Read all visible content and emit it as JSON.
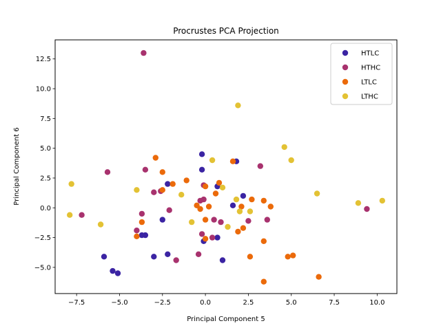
{
  "chart_data": {
    "type": "scatter",
    "title": "Procrustes PCA Projection",
    "xlabel": "Principal Component 5",
    "ylabel": "Principal Component 6",
    "xlim": [
      -8.75,
      11.15
    ],
    "ylim": [
      -7.2,
      14.1
    ],
    "xticks": [
      -7.5,
      -5.0,
      -2.5,
      0.0,
      2.5,
      5.0,
      7.5,
      10.0
    ],
    "yticks": [
      -5.0,
      -2.5,
      0.0,
      2.5,
      5.0,
      7.5,
      10.0,
      12.5
    ],
    "xtick_labels": [
      "−7.5",
      "−5.0",
      "−2.5",
      "0.0",
      "2.5",
      "5.0",
      "7.5",
      "10.0"
    ],
    "ytick_labels": [
      "−5.0",
      "−2.5",
      "0.0",
      "2.5",
      "5.0",
      "7.5",
      "10.0",
      "12.5"
    ],
    "grid": false,
    "legend_position": "top-right",
    "series": [
      {
        "name": "HTLC",
        "color": "#3b24a3",
        "points": [
          [
            -0.2,
            4.5
          ],
          [
            -0.2,
            3.2
          ],
          [
            1.8,
            3.9
          ],
          [
            -2.2,
            2.0
          ],
          [
            0.7,
            1.8
          ],
          [
            2.2,
            1.0
          ],
          [
            1.6,
            0.2
          ],
          [
            -2.5,
            -1.0
          ],
          [
            -3.5,
            -2.3
          ],
          [
            -3.7,
            -2.3
          ],
          [
            0.7,
            -2.5
          ],
          [
            -0.1,
            -2.8
          ],
          [
            -5.9,
            -4.1
          ],
          [
            -3.0,
            -4.1
          ],
          [
            -2.2,
            -3.9
          ],
          [
            1.0,
            -4.4
          ],
          [
            -5.4,
            -5.3
          ],
          [
            -5.1,
            -5.5
          ]
        ]
      },
      {
        "name": "HTHC",
        "color": "#a8326e",
        "points": [
          [
            -3.6,
            13.0
          ],
          [
            -5.7,
            3.0
          ],
          [
            -3.5,
            3.2
          ],
          [
            3.2,
            3.5
          ],
          [
            -0.1,
            1.9
          ],
          [
            -3.0,
            1.3
          ],
          [
            -2.6,
            1.4
          ],
          [
            -0.3,
            0.6
          ],
          [
            -0.1,
            0.7
          ],
          [
            -2.1,
            -0.2
          ],
          [
            -7.2,
            -0.6
          ],
          [
            -3.7,
            -0.5
          ],
          [
            0.5,
            -1.0
          ],
          [
            0.9,
            -1.2
          ],
          [
            2.5,
            -1.1
          ],
          [
            3.6,
            -1.0
          ],
          [
            -4.0,
            -1.9
          ],
          [
            -0.2,
            -2.2
          ],
          [
            0.4,
            -2.5
          ],
          [
            -0.4,
            -3.9
          ],
          [
            -1.7,
            -4.4
          ],
          [
            9.4,
            -0.1
          ]
        ]
      },
      {
        "name": "LTLC",
        "color": "#eb6a0a",
        "points": [
          [
            -2.9,
            4.2
          ],
          [
            1.6,
            3.9
          ],
          [
            -2.5,
            3.0
          ],
          [
            -1.9,
            2.0
          ],
          [
            -1.1,
            2.3
          ],
          [
            0.8,
            2.1
          ],
          [
            0.0,
            1.8
          ],
          [
            -2.5,
            1.5
          ],
          [
            0.6,
            1.2
          ],
          [
            2.7,
            0.7
          ],
          [
            3.4,
            0.6
          ],
          [
            -0.5,
            0.2
          ],
          [
            0.2,
            0.1
          ],
          [
            2.1,
            0.1
          ],
          [
            3.8,
            0.1
          ],
          [
            -0.3,
            -0.1
          ],
          [
            0.0,
            -1.0
          ],
          [
            -3.7,
            -1.2
          ],
          [
            2.2,
            -1.7
          ],
          [
            1.9,
            -2.0
          ],
          [
            -4.0,
            -2.4
          ],
          [
            0.0,
            -2.6
          ],
          [
            3.4,
            -2.8
          ],
          [
            2.6,
            -4.1
          ],
          [
            4.8,
            -4.1
          ],
          [
            5.1,
            -4.0
          ],
          [
            6.6,
            -5.8
          ],
          [
            3.4,
            -6.2
          ]
        ]
      },
      {
        "name": "LTHC",
        "color": "#e3c234",
        "points": [
          [
            1.9,
            8.6
          ],
          [
            4.6,
            5.1
          ],
          [
            5.0,
            4.0
          ],
          [
            0.4,
            4.0
          ],
          [
            -7.8,
            2.0
          ],
          [
            -4.0,
            1.5
          ],
          [
            -1.4,
            1.1
          ],
          [
            1.0,
            1.7
          ],
          [
            6.5,
            1.2
          ],
          [
            1.8,
            0.7
          ],
          [
            8.9,
            0.4
          ],
          [
            10.3,
            0.6
          ],
          [
            2.0,
            -0.3
          ],
          [
            2.6,
            -0.3
          ],
          [
            -7.9,
            -0.6
          ],
          [
            -0.8,
            -1.2
          ],
          [
            1.3,
            -1.6
          ],
          [
            -6.1,
            -1.4
          ]
        ]
      }
    ]
  }
}
